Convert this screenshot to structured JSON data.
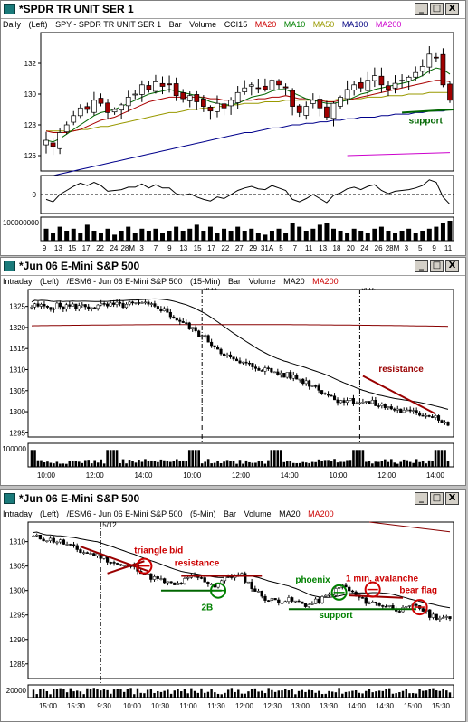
{
  "windows": [
    {
      "title": "*SPDR TR UNIT SER 1",
      "info": [
        {
          "text": "Daily",
          "color": "#000000"
        },
        {
          "text": "(Left)",
          "color": "#000000"
        },
        {
          "text": "SPY - SPDR TR UNIT SER 1",
          "color": "#000000"
        },
        {
          "text": "Bar",
          "color": "#000000"
        },
        {
          "text": "Volume",
          "color": "#000000"
        },
        {
          "text": "CCI15",
          "color": "#000000"
        },
        {
          "text": "MA20",
          "color": "#cc0000"
        },
        {
          "text": "MA10",
          "color": "#008000"
        },
        {
          "text": "MA50",
          "color": "#999900"
        },
        {
          "text": "MA100",
          "color": "#000080"
        },
        {
          "text": "MA200",
          "color": "#cc00cc"
        }
      ]
    },
    {
      "title": "*Jun 06  E-Mini S&P 500",
      "info": [
        {
          "text": "Intraday",
          "color": "#000000"
        },
        {
          "text": "(Left)",
          "color": "#000000"
        },
        {
          "text": "/ESM6 - Jun 06 E-Mini S&P 500",
          "color": "#000000"
        },
        {
          "text": "(15-Min)",
          "color": "#000000"
        },
        {
          "text": "Bar",
          "color": "#000000"
        },
        {
          "text": "Volume",
          "color": "#000000"
        },
        {
          "text": "MA20",
          "color": "#000000"
        },
        {
          "text": "MA200",
          "color": "#cc0000"
        }
      ]
    },
    {
      "title": "*Jun 06  E-Mini S&P 500",
      "info": [
        {
          "text": "Intraday",
          "color": "#000000"
        },
        {
          "text": "(Left)",
          "color": "#000000"
        },
        {
          "text": "/ESM6 - Jun 06 E-Mini S&P 500",
          "color": "#000000"
        },
        {
          "text": "(5-Min)",
          "color": "#000000"
        },
        {
          "text": "Bar",
          "color": "#000000"
        },
        {
          "text": "Volume",
          "color": "#000000"
        },
        {
          "text": "MA20",
          "color": "#000000"
        },
        {
          "text": "MA200",
          "color": "#cc0000"
        }
      ]
    }
  ],
  "buttons": {
    "minimize": "_",
    "maximize": "□",
    "close": "X"
  },
  "chart_data": [
    {
      "type": "bar",
      "panel": "daily",
      "ylim": [
        125,
        134
      ],
      "y_ticks": [
        126,
        128,
        130,
        132
      ],
      "x_tick_labels": [
        "9",
        "13",
        "15",
        "17",
        "22",
        "24",
        "28M",
        "3",
        "7",
        "9",
        "13",
        "15",
        "17",
        "22",
        "27",
        "29",
        "31A",
        "5",
        "7",
        "11",
        "13",
        "18",
        "20",
        "24",
        "26",
        "28M",
        "3",
        "5",
        "9",
        "11"
      ],
      "close": [
        127.0,
        126.6,
        127.5,
        128.0,
        128.6,
        129.1,
        129.0,
        129.6,
        129.4,
        128.8,
        129.0,
        129.3,
        129.8,
        130.0,
        130.6,
        130.3,
        130.8,
        130.5,
        130.6,
        129.9,
        129.7,
        129.9,
        129.5,
        129.2,
        128.9,
        129.4,
        129.1,
        129.6,
        130.1,
        130.4,
        130.6,
        130.4,
        130.3,
        130.9,
        130.6,
        130.4,
        129.2,
        128.8,
        129.2,
        129.6,
        129.1,
        128.5,
        129.4,
        129.8,
        130.3,
        130.6,
        130.4,
        130.9,
        131.2,
        130.6,
        130.3,
        130.7,
        130.9,
        131.1,
        131.4,
        131.8,
        132.6,
        132.4,
        130.6,
        129.6
      ],
      "ma10": [
        127.0,
        126.9,
        127.1,
        127.4,
        127.7,
        128.0,
        128.3,
        128.6,
        128.8,
        128.9,
        129.0,
        129.2,
        129.4,
        129.6,
        129.8,
        130.0,
        130.1,
        130.2,
        130.3,
        130.2,
        130.1,
        130.0,
        129.9,
        129.7,
        129.5,
        129.4,
        129.3,
        129.3,
        129.4,
        129.6,
        129.8,
        129.9,
        130.0,
        130.2,
        130.3,
        130.3,
        130.1,
        129.9,
        129.7,
        129.6,
        129.5,
        129.4,
        129.4,
        129.5,
        129.6,
        129.8,
        130.0,
        130.1,
        130.3,
        130.4,
        130.5,
        130.6,
        130.7,
        130.8,
        131.0,
        131.2,
        131.5,
        131.7,
        131.6,
        131.3
      ],
      "ma20": [
        127.6,
        127.5,
        127.5,
        127.5,
        127.6,
        127.7,
        127.9,
        128.1,
        128.3,
        128.4,
        128.5,
        128.7,
        128.9,
        129.1,
        129.3,
        129.5,
        129.6,
        129.7,
        129.8,
        129.8,
        129.8,
        129.8,
        129.8,
        129.8,
        129.7,
        129.7,
        129.6,
        129.6,
        129.6,
        129.6,
        129.6,
        129.7,
        129.7,
        129.8,
        129.8,
        129.9,
        129.8,
        129.7,
        129.7,
        129.6,
        129.6,
        129.5,
        129.5,
        129.6,
        129.6,
        129.7,
        129.8,
        129.9,
        130.0,
        130.1,
        130.2,
        130.3,
        130.4,
        130.5,
        130.6,
        130.7,
        130.8,
        130.9,
        130.9,
        130.8
      ],
      "ma50": [
        127.6,
        127.6,
        127.6,
        127.6,
        127.6,
        127.7,
        127.7,
        127.8,
        127.9,
        127.9,
        128.0,
        128.1,
        128.2,
        128.3,
        128.4,
        128.5,
        128.6,
        128.7,
        128.8,
        128.8,
        128.9,
        129.0,
        129.0,
        129.1,
        129.1,
        129.2,
        129.2,
        129.3,
        129.3,
        129.4,
        129.4,
        129.4,
        129.5,
        129.5,
        129.5,
        129.6,
        129.6,
        129.6,
        129.6,
        129.6,
        129.6,
        129.6,
        129.6,
        129.7,
        129.7,
        129.7,
        129.7,
        129.8,
        129.8,
        129.8,
        129.9,
        129.9,
        129.9,
        130.0,
        130.0,
        130.0,
        130.1,
        130.1,
        130.1,
        130.1
      ],
      "ma100": [
        124.6,
        124.7,
        124.8,
        124.9,
        125.0,
        125.1,
        125.2,
        125.3,
        125.4,
        125.5,
        125.6,
        125.7,
        125.8,
        125.9,
        126.0,
        126.1,
        126.2,
        126.3,
        126.4,
        126.5,
        126.6,
        126.7,
        126.8,
        126.9,
        127.0,
        127.1,
        127.2,
        127.3,
        127.4,
        127.5,
        127.5,
        127.6,
        127.7,
        127.8,
        127.8,
        127.9,
        128.0,
        128.0,
        128.1,
        128.1,
        128.2,
        128.2,
        128.3,
        128.3,
        128.4,
        128.4,
        128.5,
        128.5,
        128.5,
        128.6,
        128.6,
        128.7,
        128.7,
        128.7,
        128.8,
        128.8,
        128.9,
        128.9,
        128.9,
        129.0
      ],
      "ma200": [
        126.0,
        126.2
      ],
      "volume_label": "100000000",
      "volume": [
        0.6,
        0.4,
        0.7,
        0.5,
        0.6,
        0.4,
        0.8,
        0.5,
        0.4,
        0.6,
        0.3,
        0.5,
        0.7,
        0.4,
        0.6,
        0.5,
        0.6,
        0.4,
        0.5,
        0.7,
        0.5,
        0.6,
        0.8,
        0.5,
        0.7,
        0.4,
        0.6,
        0.5,
        0.7,
        0.5,
        0.6,
        0.4,
        0.3,
        0.5,
        0.6,
        0.4,
        0.9,
        0.7,
        0.5,
        0.6,
        0.8,
        0.9,
        0.6,
        0.5,
        0.4,
        0.6,
        0.5,
        0.4,
        0.6,
        0.7,
        0.5,
        0.4,
        0.5,
        0.6,
        0.4,
        0.5,
        0.6,
        0.7,
        0.9,
        1.0
      ],
      "cci_zero_label": "0",
      "annotations": [
        {
          "text": "support",
          "color": "#006600"
        }
      ]
    },
    {
      "type": "bar",
      "panel": "15-min",
      "ylim": [
        1294,
        1329
      ],
      "y_ticks": [
        1295,
        1300,
        1305,
        1310,
        1315,
        1320,
        1325
      ],
      "x_tick_labels": [
        "10:00",
        "12:00",
        "14:00",
        "10:00",
        "12:00",
        "14:00",
        "10:00",
        "12:00",
        "14:00"
      ],
      "session_labels": [
        "5/11",
        "5/12"
      ],
      "volume_label": "100000",
      "annotations": [
        {
          "text": "resistance",
          "color": "#990000"
        }
      ]
    },
    {
      "type": "bar",
      "panel": "5-min",
      "ylim": [
        1282,
        1314
      ],
      "y_ticks": [
        1285,
        1290,
        1295,
        1300,
        1305,
        1310
      ],
      "x_tick_labels": [
        "15:00",
        "15:30",
        "9:30",
        "10:00",
        "10:30",
        "11:00",
        "11:30",
        "12:00",
        "12:30",
        "13:00",
        "13:30",
        "14:00",
        "14:30",
        "15:00",
        "15:30"
      ],
      "session_labels": [
        "5/12"
      ],
      "volume_label": "20000",
      "annotations": [
        {
          "text": "triangle b/d",
          "color": "#cc0000"
        },
        {
          "text": "resistance",
          "color": "#cc0000"
        },
        {
          "text": "2B",
          "color": "#008000"
        },
        {
          "text": "phoenix",
          "color": "#008000"
        },
        {
          "text": "1 min. avalanche",
          "color": "#cc0000"
        },
        {
          "text": "bear flag",
          "color": "#cc0000"
        },
        {
          "text": "support",
          "color": "#008000"
        }
      ]
    }
  ]
}
